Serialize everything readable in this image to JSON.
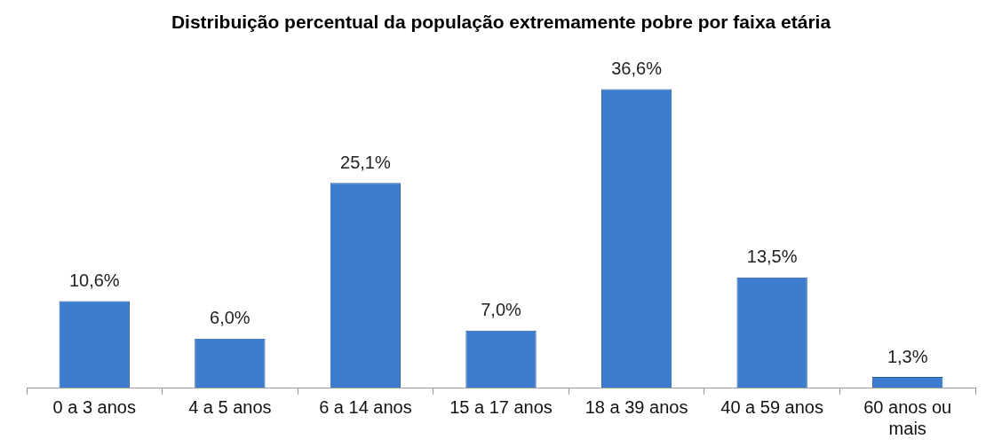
{
  "chart_data": {
    "type": "bar",
    "title": "Distribuição percentual da população extremamente pobre por faixa etária",
    "categories": [
      "0 a 3 anos",
      "4 a 5 anos",
      "6 a 14 anos",
      "15 a 17 anos",
      "18 a 39 anos",
      "40 a 59 anos",
      "60 anos ou mais"
    ],
    "values": [
      10.6,
      6.0,
      25.1,
      7.0,
      36.6,
      13.5,
      1.3
    ],
    "value_labels": [
      "10,6%",
      "6,0%",
      "25,1%",
      "7,0%",
      "36,6%",
      "13,5%",
      "1,3%"
    ],
    "color": "#3d7dd0",
    "grid": false
  }
}
